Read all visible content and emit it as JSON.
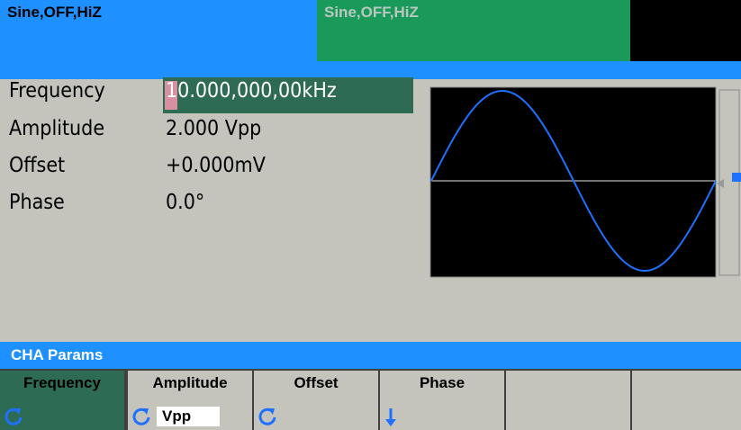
{
  "header": {
    "channel_a_status": "Sine,OFF,HiZ",
    "channel_b_status": "Sine,OFF,HiZ"
  },
  "params": [
    {
      "label": "Frequency",
      "value": "10.000,000,00kHz"
    },
    {
      "label": "Amplitude",
      "value": "2.000 Vpp"
    },
    {
      "label": "Offset",
      "value": "+0.000mV"
    },
    {
      "label": "Phase",
      "value": "0.0°"
    }
  ],
  "menu_title": "CHA Params",
  "softkeys": [
    {
      "label": "Frequency"
    },
    {
      "label": "Amplitude",
      "unit": "Vpp"
    },
    {
      "label": "Offset"
    },
    {
      "label": "Phase"
    }
  ]
}
